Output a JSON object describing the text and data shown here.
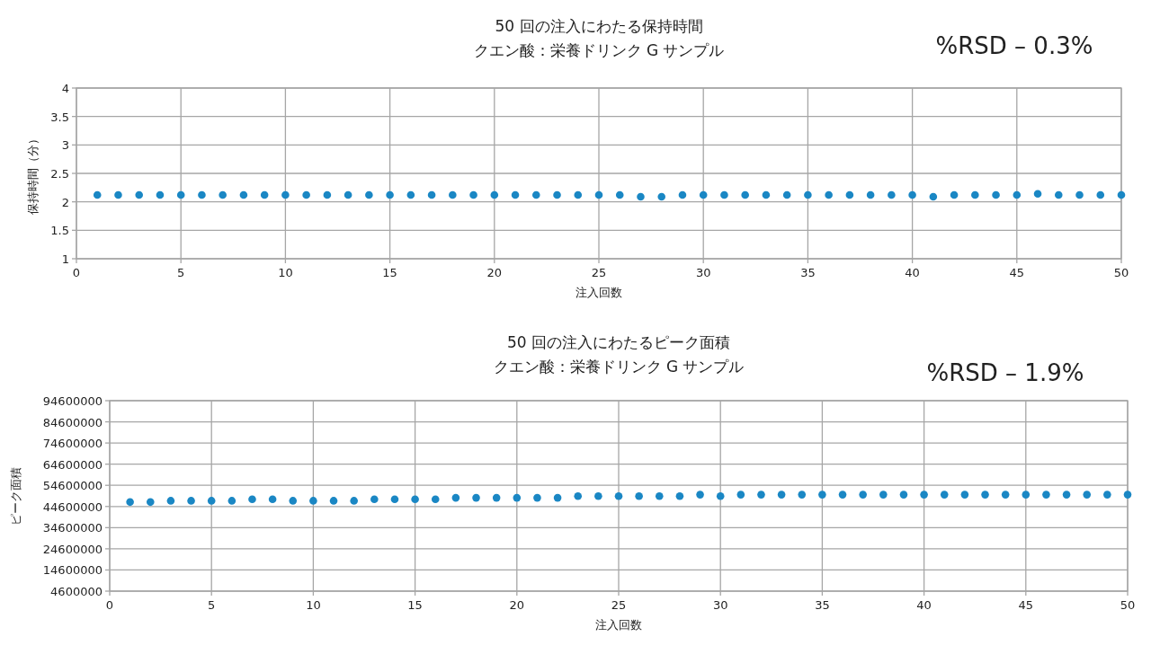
{
  "chart_data": [
    {
      "type": "scatter",
      "title": "50 回の注入にわたる保持時間",
      "subtitle": "クエン酸：栄養ドリンク G サンプル",
      "annotations": [
        "%RSD – 0.3%"
      ],
      "xlabel": "注入回数",
      "ylabel": "保持時間（分）",
      "xlim": [
        0,
        50
      ],
      "xticks": [
        0,
        5,
        10,
        15,
        20,
        25,
        30,
        35,
        40,
        45,
        50
      ],
      "ylim": [
        1,
        4
      ],
      "yticks": [
        1,
        1.5,
        2,
        2.5,
        3,
        3.5,
        4
      ],
      "grid": true,
      "marker": "circle",
      "x": [
        1,
        2,
        3,
        4,
        5,
        6,
        7,
        8,
        9,
        10,
        11,
        12,
        13,
        14,
        15,
        16,
        17,
        18,
        19,
        20,
        21,
        22,
        23,
        24,
        25,
        26,
        27,
        28,
        29,
        30,
        31,
        32,
        33,
        34,
        35,
        36,
        37,
        38,
        39,
        40,
        41,
        42,
        43,
        44,
        45,
        46,
        47,
        48,
        49,
        50
      ],
      "series": [
        {
          "color": "#1a87c4",
          "values": [
            2.12,
            2.12,
            2.12,
            2.12,
            2.12,
            2.12,
            2.12,
            2.12,
            2.12,
            2.12,
            2.12,
            2.12,
            2.12,
            2.12,
            2.12,
            2.12,
            2.12,
            2.12,
            2.12,
            2.12,
            2.12,
            2.12,
            2.12,
            2.12,
            2.12,
            2.12,
            2.09,
            2.09,
            2.12,
            2.12,
            2.12,
            2.12,
            2.12,
            2.12,
            2.12,
            2.12,
            2.12,
            2.12,
            2.12,
            2.12,
            2.09,
            2.12,
            2.12,
            2.12,
            2.12,
            2.14,
            2.12,
            2.12,
            2.12,
            2.12
          ]
        }
      ]
    },
    {
      "type": "scatter",
      "title": "50 回の注入にわたるピーク面積",
      "subtitle": "クエン酸：栄養ドリンク G サンプル",
      "annotations": [
        "%RSD – 1.9%"
      ],
      "xlabel": "注入回数",
      "ylabel": "ピーク面積",
      "xlim": [
        0,
        50
      ],
      "xticks": [
        0,
        5,
        10,
        15,
        20,
        25,
        30,
        35,
        40,
        45,
        50
      ],
      "ylim": [
        4600000,
        94600000
      ],
      "yticks": [
        4600000,
        14600000,
        24600000,
        34600000,
        44600000,
        54600000,
        64600000,
        74600000,
        84600000,
        94600000
      ],
      "grid": true,
      "marker": "circle",
      "x": [
        1,
        2,
        3,
        4,
        5,
        6,
        7,
        8,
        9,
        10,
        11,
        12,
        13,
        14,
        15,
        16,
        17,
        18,
        19,
        20,
        21,
        22,
        23,
        24,
        25,
        26,
        27,
        28,
        29,
        30,
        31,
        32,
        33,
        34,
        35,
        36,
        37,
        38,
        39,
        40,
        41,
        42,
        43,
        44,
        45,
        46,
        47,
        48,
        49,
        50
      ],
      "series": [
        {
          "color": "#1a87c4",
          "values": [
            46700000,
            46700000,
            47300000,
            47300000,
            47300000,
            47300000,
            48000000,
            48000000,
            47300000,
            47300000,
            47300000,
            47300000,
            48000000,
            48000000,
            48000000,
            48000000,
            48700000,
            48700000,
            48700000,
            48700000,
            48700000,
            48700000,
            49500000,
            49500000,
            49500000,
            49500000,
            49500000,
            49500000,
            50200000,
            49500000,
            50200000,
            50200000,
            50200000,
            50200000,
            50200000,
            50200000,
            50200000,
            50200000,
            50200000,
            50200000,
            50200000,
            50200000,
            50200000,
            50200000,
            50200000,
            50200000,
            50200000,
            50200000,
            50200000,
            50200000
          ]
        }
      ]
    }
  ]
}
